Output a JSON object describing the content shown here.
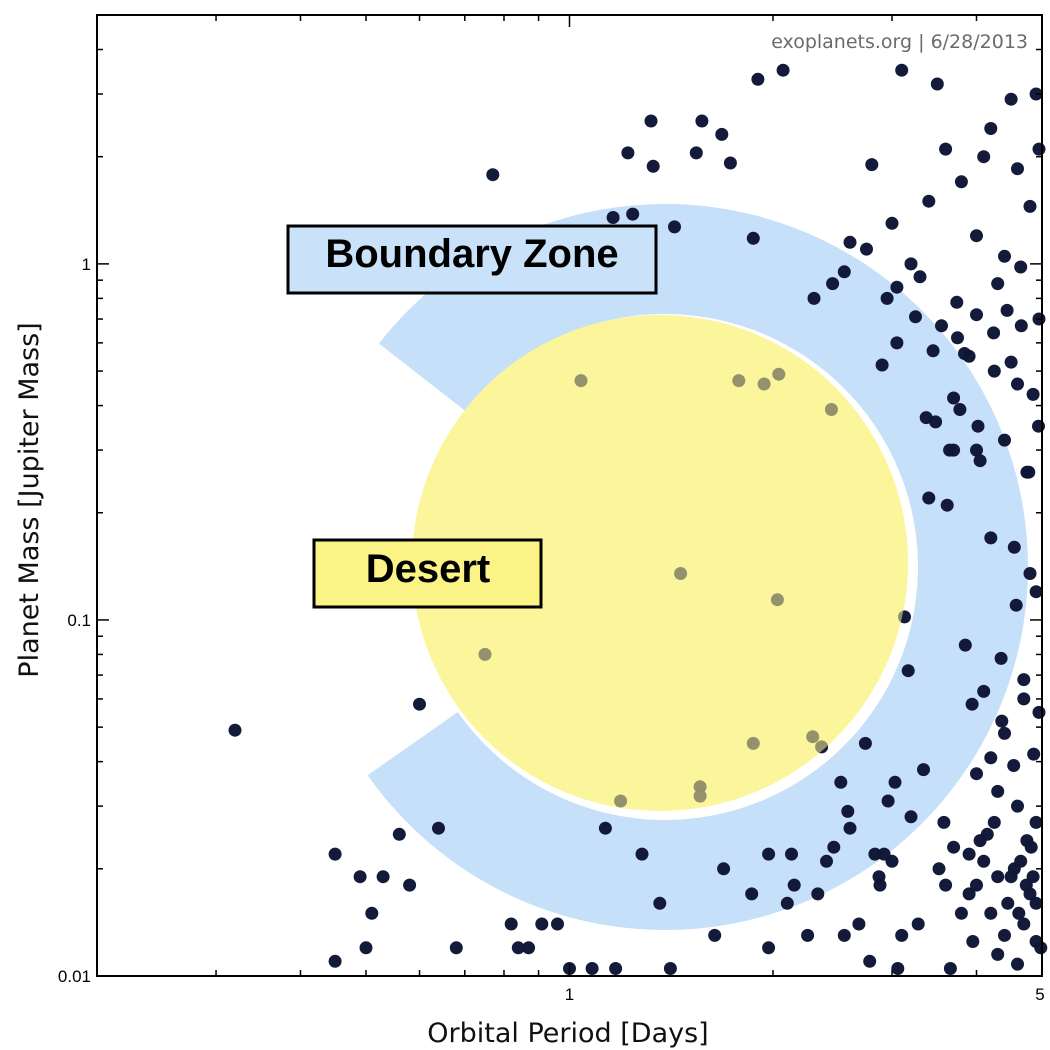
{
  "chart_data": {
    "type": "scatter",
    "xlabel": "Orbital Period [Days]",
    "ylabel": "Planet Mass [Jupiter Mass]",
    "xscale": "log",
    "yscale": "log",
    "xlim": [
      0.2,
      5
    ],
    "ylim": [
      0.01,
      5
    ],
    "x_ticks": [
      {
        "value": 1,
        "label": "1"
      },
      {
        "value": 5,
        "label": "5"
      }
    ],
    "y_ticks": [
      {
        "value": 0.01,
        "label": "0.01"
      },
      {
        "value": 0.1,
        "label": "0.1"
      },
      {
        "value": 1,
        "label": "1"
      }
    ],
    "grid": false,
    "credit": "exoplanets.org | 6/28/2013",
    "regions": [
      {
        "label": "Boundary Zone",
        "color": "#c5e0f8",
        "shape": "ring-arc"
      },
      {
        "label": "Desert",
        "color": "#fbf59b",
        "shape": "circle"
      }
    ],
    "point_color": "#0f1535",
    "points": [
      [
        0.32,
        0.049
      ],
      [
        0.45,
        0.011
      ],
      [
        0.45,
        0.022
      ],
      [
        0.49,
        0.019
      ],
      [
        0.5,
        0.012
      ],
      [
        0.51,
        0.015
      ],
      [
        0.53,
        0.019
      ],
      [
        0.56,
        0.025
      ],
      [
        0.58,
        0.018
      ],
      [
        0.6,
        0.058
      ],
      [
        0.64,
        0.026
      ],
      [
        0.68,
        0.012
      ],
      [
        0.72,
        1.15
      ],
      [
        0.75,
        0.08
      ],
      [
        0.77,
        1.78
      ],
      [
        0.82,
        0.014
      ],
      [
        0.84,
        0.012
      ],
      [
        0.87,
        0.012
      ],
      [
        0.91,
        0.014
      ],
      [
        0.96,
        0.014
      ],
      [
        1.0,
        0.0105
      ],
      [
        1.04,
        0.47
      ],
      [
        1.08,
        0.0105
      ],
      [
        1.13,
        0.026
      ],
      [
        1.16,
        1.35
      ],
      [
        1.17,
        0.0105
      ],
      [
        1.19,
        0.031
      ],
      [
        1.22,
        2.05
      ],
      [
        1.24,
        1.38
      ],
      [
        1.28,
        0.022
      ],
      [
        1.32,
        2.52
      ],
      [
        1.33,
        1.88
      ],
      [
        1.36,
        0.016
      ],
      [
        1.41,
        0.0105
      ],
      [
        1.43,
        1.27
      ],
      [
        1.46,
        0.135
      ],
      [
        1.54,
        2.05
      ],
      [
        1.56,
        0.034
      ],
      [
        1.56,
        0.032
      ],
      [
        1.57,
        2.52
      ],
      [
        1.64,
        0.013
      ],
      [
        1.68,
        2.31
      ],
      [
        1.69,
        0.02
      ],
      [
        1.73,
        1.92
      ],
      [
        1.78,
        0.47
      ],
      [
        1.86,
        0.017
      ],
      [
        1.87,
        1.18
      ],
      [
        1.87,
        0.045
      ],
      [
        1.9,
        3.3
      ],
      [
        1.94,
        0.46
      ],
      [
        1.97,
        0.022
      ],
      [
        1.97,
        0.012
      ],
      [
        2.03,
        0.114
      ],
      [
        2.04,
        0.49
      ],
      [
        2.07,
        3.5
      ],
      [
        2.1,
        0.016
      ],
      [
        2.13,
        0.022
      ],
      [
        2.15,
        0.018
      ],
      [
        2.25,
        0.013
      ],
      [
        2.29,
        0.047
      ],
      [
        2.33,
        0.017
      ],
      [
        2.36,
        0.044
      ],
      [
        2.4,
        0.021
      ],
      [
        2.44,
        0.39
      ],
      [
        2.46,
        0.023
      ],
      [
        2.52,
        0.035
      ],
      [
        2.55,
        0.013
      ],
      [
        2.58,
        0.029
      ],
      [
        2.6,
        0.026
      ],
      [
        2.68,
        0.014
      ],
      [
        2.74,
        0.045
      ],
      [
        2.78,
        0.011
      ],
      [
        2.83,
        0.022
      ],
      [
        2.87,
        0.019
      ],
      [
        2.88,
        0.018
      ],
      [
        2.9,
        0.52
      ],
      [
        2.92,
        0.022
      ],
      [
        2.96,
        0.031
      ],
      [
        3.0,
        0.021
      ],
      [
        3.03,
        0.035
      ],
      [
        3.06,
        0.0105
      ],
      [
        3.13,
        0.102
      ],
      [
        3.17,
        0.072
      ],
      [
        3.1,
        0.013
      ],
      [
        3.2,
        0.028
      ],
      [
        3.28,
        0.014
      ],
      [
        3.34,
        0.038
      ],
      [
        3.37,
        0.37
      ],
      [
        3.4,
        0.22
      ],
      [
        3.48,
        0.36
      ],
      [
        3.52,
        0.02
      ],
      [
        3.58,
        0.027
      ],
      [
        3.62,
        0.21
      ],
      [
        3.66,
        0.0105
      ],
      [
        3.7,
        0.023
      ],
      [
        3.74,
        0.78
      ],
      [
        3.78,
        0.39
      ],
      [
        3.84,
        0.56
      ],
      [
        3.9,
        0.022
      ],
      [
        3.94,
        0.058
      ],
      [
        4.0,
        0.72
      ],
      [
        4.02,
        0.35
      ],
      [
        4.1,
        0.063
      ],
      [
        4.15,
        0.025
      ],
      [
        4.2,
        0.041
      ],
      [
        4.24,
        0.64
      ],
      [
        4.3,
        0.019
      ],
      [
        4.36,
        0.052
      ],
      [
        4.4,
        0.048
      ],
      [
        4.44,
        0.74
      ],
      [
        4.5,
        0.53
      ],
      [
        4.54,
        0.039
      ],
      [
        4.58,
        0.11
      ],
      [
        4.62,
        0.015
      ],
      [
        4.66,
        0.67
      ],
      [
        4.7,
        0.068
      ],
      [
        4.74,
        0.018
      ],
      [
        4.78,
        0.26
      ],
      [
        4.82,
        0.023
      ],
      [
        4.86,
        0.042
      ],
      [
        4.9,
        0.016
      ],
      [
        4.94,
        0.35
      ],
      [
        4.98,
        0.012
      ],
      [
        2.8,
        1.9
      ],
      [
        3.0,
        1.3
      ],
      [
        3.2,
        1.0
      ],
      [
        3.4,
        1.5
      ],
      [
        3.6,
        2.1
      ],
      [
        3.8,
        1.7
      ],
      [
        4.0,
        1.2
      ],
      [
        4.2,
        2.4
      ],
      [
        4.4,
        1.05
      ],
      [
        4.6,
        1.85
      ],
      [
        4.8,
        1.45
      ],
      [
        4.95,
        2.1
      ],
      [
        3.1,
        3.5
      ],
      [
        3.5,
        3.2
      ],
      [
        4.1,
        2.0
      ],
      [
        4.5,
        2.9
      ],
      [
        4.9,
        3.0
      ],
      [
        2.6,
        1.15
      ],
      [
        2.45,
        0.88
      ],
      [
        2.3,
        0.8
      ],
      [
        2.55,
        0.95
      ],
      [
        2.75,
        1.1
      ],
      [
        3.05,
        0.86
      ],
      [
        3.3,
        0.92
      ],
      [
        3.55,
        0.67
      ],
      [
        3.75,
        0.62
      ],
      [
        3.9,
        0.55
      ],
      [
        4.25,
        0.5
      ],
      [
        4.6,
        0.46
      ],
      [
        4.85,
        0.43
      ],
      [
        3.65,
        0.3
      ],
      [
        4.05,
        0.28
      ],
      [
        4.4,
        0.32
      ],
      [
        4.75,
        0.26
      ],
      [
        4.2,
        0.17
      ],
      [
        4.55,
        0.16
      ],
      [
        4.8,
        0.135
      ],
      [
        4.9,
        0.12
      ],
      [
        3.85,
        0.085
      ],
      [
        4.35,
        0.078
      ],
      [
        4.7,
        0.06
      ],
      [
        4.95,
        0.055
      ],
      [
        3.7,
        0.3
      ],
      [
        4.0,
        0.3
      ],
      [
        3.45,
        0.57
      ],
      [
        3.25,
        0.71
      ],
      [
        3.05,
        0.6
      ],
      [
        2.95,
        0.8
      ],
      [
        3.7,
        0.42
      ],
      [
        4.3,
        0.88
      ],
      [
        4.65,
        0.98
      ],
      [
        4.95,
        0.7
      ],
      [
        4.0,
        0.037
      ],
      [
        4.3,
        0.033
      ],
      [
        4.6,
        0.03
      ],
      [
        4.9,
        0.027
      ],
      [
        4.1,
        0.021
      ],
      [
        4.5,
        0.019
      ],
      [
        4.8,
        0.017
      ],
      [
        4.2,
        0.015
      ],
      [
        4.4,
        0.013
      ],
      [
        4.7,
        0.014
      ],
      [
        4.9,
        0.0125
      ],
      [
        4.3,
        0.0115
      ],
      [
        4.6,
        0.0108
      ],
      [
        3.95,
        0.0125
      ],
      [
        3.8,
        0.015
      ],
      [
        3.6,
        0.018
      ],
      [
        4.0,
        0.018
      ],
      [
        4.25,
        0.027
      ],
      [
        4.75,
        0.024
      ],
      [
        4.55,
        0.02
      ],
      [
        4.05,
        0.024
      ],
      [
        4.45,
        0.016
      ],
      [
        3.9,
        0.017
      ],
      [
        4.85,
        0.019
      ],
      [
        4.65,
        0.021
      ]
    ]
  }
}
